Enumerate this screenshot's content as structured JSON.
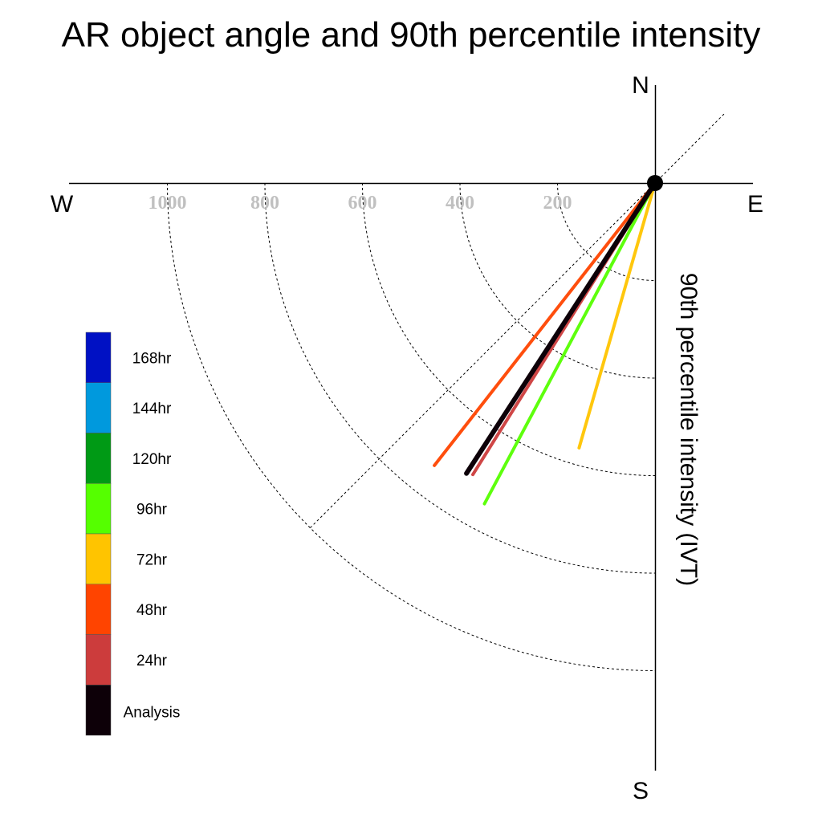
{
  "chart_data": {
    "type": "polar-vector",
    "title": "AR object angle and 90th percentile intensity",
    "ylabel": "90th percentile intensity (IVT)",
    "compass": {
      "north": "N",
      "south": "S",
      "east": "E",
      "west": "W"
    },
    "radial_ticks": [
      "200",
      "400",
      "600",
      "800",
      "1000"
    ],
    "radial_tick_values": [
      200,
      400,
      600,
      800,
      1000
    ],
    "radial_range": [
      0,
      1000
    ],
    "angle_convention": "degrees clockwise from north",
    "series": [
      {
        "name": "48hr",
        "angle": 218,
        "intensity": 735,
        "color": "#ff4400"
      },
      {
        "name": "96hr",
        "angle": 208,
        "intensity": 745,
        "color": "#55ff00"
      },
      {
        "name": "72hr",
        "angle": 196,
        "intensity": 565,
        "color": "#ffc400"
      },
      {
        "name": "24hr",
        "angle": 212,
        "intensity": 705,
        "color": "#cc3c3c"
      },
      {
        "name": "Analysis",
        "angle": 213,
        "intensity": 710,
        "color": "#0d0008"
      }
    ],
    "legend": [
      {
        "label": "168hr",
        "color": "#0011c4"
      },
      {
        "label": "144hr",
        "color": "#0099dd"
      },
      {
        "label": "120hr",
        "color": "#009a15"
      },
      {
        "label": "96hr",
        "color": "#55ff00"
      },
      {
        "label": "72hr",
        "color": "#ffc400"
      },
      {
        "label": "48hr",
        "color": "#ff4400"
      },
      {
        "label": "24hr",
        "color": "#cc3c3c"
      },
      {
        "label": "Analysis",
        "color": "#0d0008"
      }
    ],
    "legend_position": "left"
  }
}
